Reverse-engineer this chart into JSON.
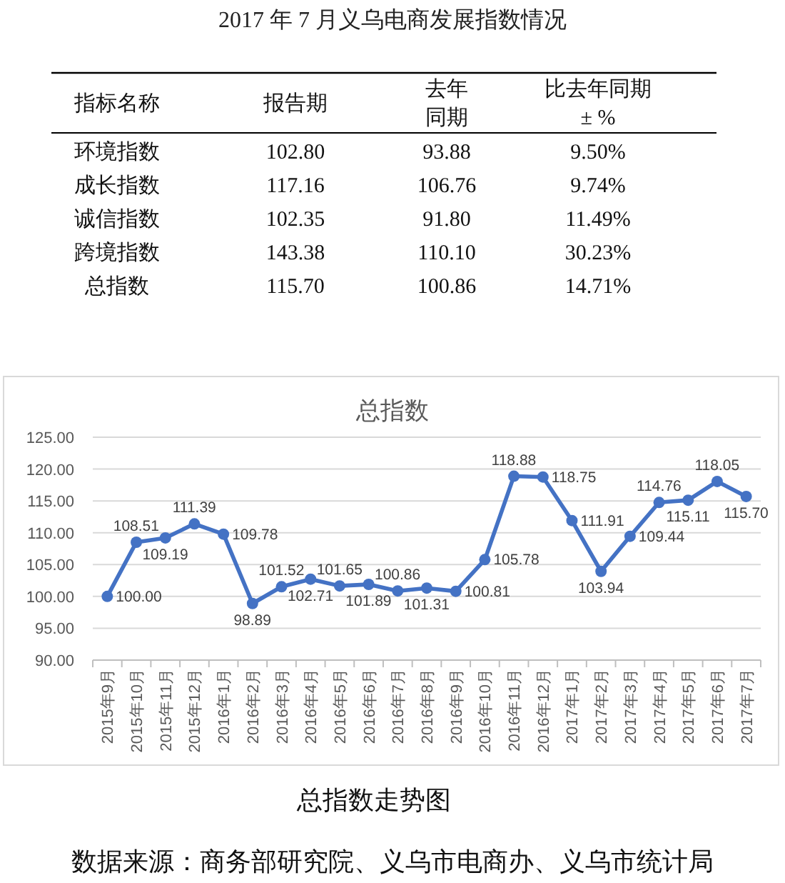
{
  "chart_data": [
    {
      "type": "other",
      "title": "2017 年 7 月义乌电商发展指数情况",
      "ylabel": "指标名称",
      "categories": [
        "报告期",
        "去年同期",
        "比去年同期± %"
      ],
      "y_categories": [
        "环境指数",
        "成长指数",
        "诚信指数",
        "跨境指数",
        "总指数"
      ],
      "cell_labels": [
        [
          "102.80",
          "93.88",
          "9.50%"
        ],
        [
          "117.16",
          "106.76",
          "9.74%"
        ],
        [
          "102.35",
          "91.80",
          "11.49%"
        ],
        [
          "143.38",
          "110.10",
          "30.23%"
        ],
        [
          "115.70",
          "100.86",
          "14.71%"
        ]
      ]
    },
    {
      "type": "line",
      "title": "总指数",
      "categories": [
        "2015年9月",
        "2015年10月",
        "2015年11月",
        "2015年12月",
        "2016年1月",
        "2016年2月",
        "2016年3月",
        "2016年4月",
        "2016年5月",
        "2016年6月",
        "2016年7月",
        "2016年8月",
        "2016年9月",
        "2016年10月",
        "2016年11月",
        "2016年12月",
        "2017年1月",
        "2017年2月",
        "2017年3月",
        "2017年4月",
        "2017年5月",
        "2017年6月",
        "2017年7月"
      ],
      "values": [
        100.0,
        108.51,
        109.19,
        111.39,
        109.78,
        98.89,
        101.52,
        102.71,
        101.65,
        101.89,
        100.86,
        101.31,
        100.81,
        105.78,
        118.88,
        118.75,
        111.91,
        103.94,
        109.44,
        114.76,
        115.11,
        118.05,
        115.7
      ],
      "value_labels": [
        "100.00",
        "108.51",
        "109.19",
        "111.39",
        "109.78",
        "98.89",
        "101.52",
        "102.71",
        "101.65",
        "101.89",
        "100.86",
        "101.31",
        "100.81",
        "105.78",
        "118.88",
        "118.75",
        "111.91",
        "103.94",
        "109.44",
        "114.76",
        "115.11",
        "118.05",
        "115.70"
      ],
      "color": "#4472c4",
      "marker": "circle",
      "grid": "y",
      "ylim": [
        90,
        125
      ],
      "yticks": [
        {
          "value": 90,
          "label": "90.00"
        },
        {
          "value": 95,
          "label": "95.00"
        },
        {
          "value": 100,
          "label": "100.00"
        },
        {
          "value": 105,
          "label": "105.00"
        },
        {
          "value": 110,
          "label": "110.00"
        },
        {
          "value": 115,
          "label": "115.00"
        },
        {
          "value": 120,
          "label": "120.00"
        },
        {
          "value": 125,
          "label": "125.00"
        }
      ],
      "annotations": [
        "总指数走势图",
        "数据来源：商务部研究院、义乌市电商办、义乌市统计局"
      ]
    }
  ]
}
